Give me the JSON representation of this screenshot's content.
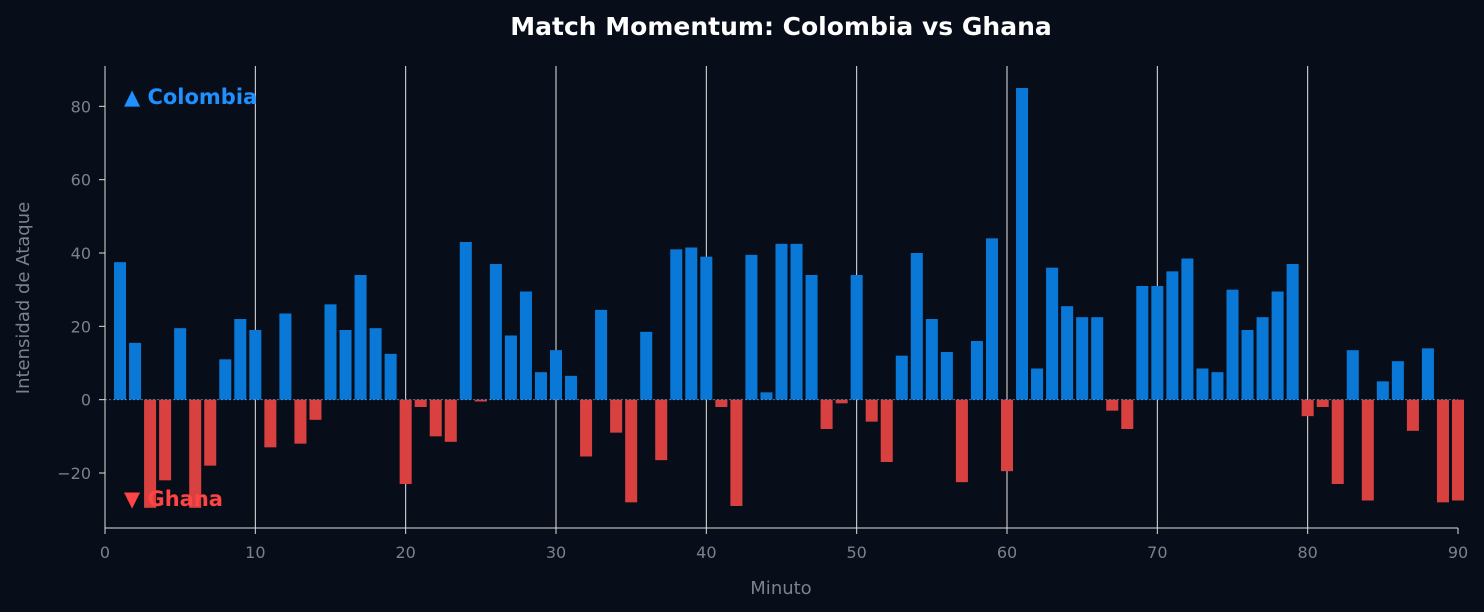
{
  "chart_data": {
    "type": "bar",
    "title": "Match Momentum: Colombia vs Ghana",
    "xlabel": "Minuto",
    "ylabel": "Intensidad de Ataque",
    "xlim": [
      0,
      90
    ],
    "ylim": [
      -35,
      91
    ],
    "x_ticks": [
      0,
      10,
      20,
      30,
      40,
      50,
      60,
      70,
      80,
      90
    ],
    "y_ticks": [
      -20,
      0,
      20,
      40,
      60,
      80
    ],
    "grid": "vertical lines every 10 minutes",
    "legend_placement": "top-left / bottom-left",
    "series": [
      {
        "name": "Colombia",
        "marker": "▲",
        "label": "▲ Colombia",
        "color": "#0a78d6",
        "direction": "positive",
        "legend_position": "top-left"
      },
      {
        "name": "Ghana",
        "marker": "▼",
        "label": "▼ Ghana",
        "color": "#d94040",
        "direction": "negative",
        "legend_position": "bottom-left"
      }
    ],
    "x": [
      1,
      2,
      3,
      4,
      5,
      6,
      7,
      8,
      9,
      10,
      11,
      12,
      13,
      14,
      15,
      16,
      17,
      18,
      19,
      20,
      21,
      22,
      23,
      24,
      25,
      26,
      27,
      28,
      29,
      30,
      31,
      32,
      33,
      34,
      35,
      36,
      37,
      38,
      39,
      40,
      41,
      42,
      43,
      44,
      45,
      46,
      47,
      48,
      49,
      50,
      51,
      52,
      53,
      54,
      55,
      56,
      57,
      58,
      59,
      60,
      61,
      62,
      63,
      64,
      65,
      66,
      67,
      68,
      69,
      70,
      71,
      72,
      73,
      74,
      75,
      76,
      77,
      78,
      79,
      80,
      81,
      82,
      83,
      84,
      85,
      86,
      87,
      88,
      89,
      90
    ],
    "values": [
      37.5,
      15.5,
      -29.5,
      -22,
      19.5,
      -29.5,
      -18,
      11,
      22,
      19,
      -13,
      23.5,
      -12,
      -5.5,
      26,
      19,
      34,
      19.5,
      12.5,
      -23,
      -2,
      -10,
      -11.5,
      43,
      -0.5,
      37,
      17.5,
      29.5,
      7.5,
      13.5,
      6.5,
      -15.5,
      24.5,
      -9,
      -28,
      18.5,
      -16.5,
      41,
      41.5,
      39,
      -2,
      -29,
      39.5,
      2,
      42.5,
      42.5,
      34,
      -8,
      -1,
      34,
      -6,
      -17,
      12,
      40,
      22,
      13,
      -22.5,
      16,
      44,
      -19.5,
      85,
      8.5,
      36,
      25.5,
      22.5,
      22.5,
      -3,
      -8,
      31,
      31,
      35,
      38.5,
      8.5,
      7.5,
      30,
      19,
      22.5,
      29.5,
      37,
      -4.5,
      -2,
      -23,
      13.5,
      -27.5,
      5,
      10.5,
      -8.5,
      14,
      -28,
      -27.5
    ]
  }
}
